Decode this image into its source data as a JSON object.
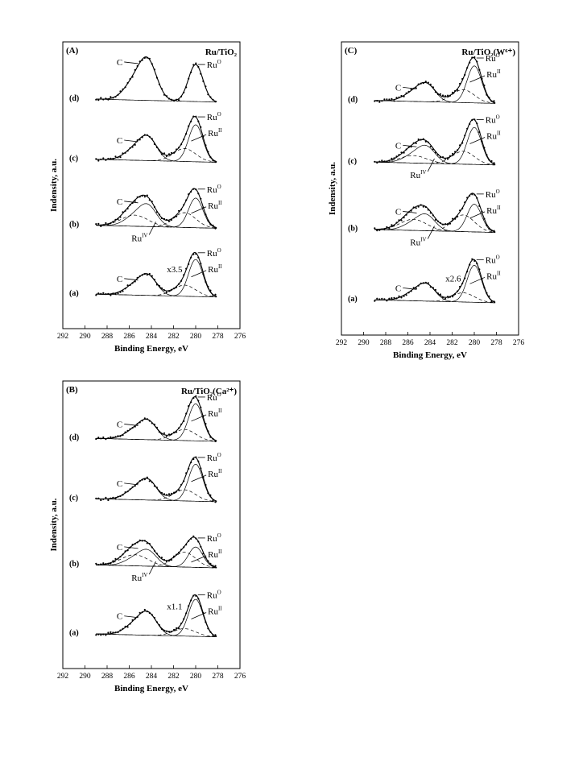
{
  "chart_data": [
    {
      "type": "line",
      "panel": "(A)",
      "title": "Ru/TiO₂",
      "xlabel": "Binding Energy, eV",
      "ylabel": "Indensity, a.u.",
      "xlim": [
        292,
        276
      ],
      "xticks": [
        292,
        290,
        288,
        286,
        284,
        282,
        280,
        278,
        276
      ],
      "traces": [
        {
          "label": "(d)",
          "ru0": 1.0,
          "ru2": 0.0,
          "ru4": 0.0,
          "c": 1.8,
          "annotations": [
            "C",
            "Ru⁰"
          ]
        },
        {
          "label": "(c)",
          "ru0": 1.0,
          "ru2": 0.35,
          "ru4": 0.0,
          "c": 1.05,
          "annotations": [
            "C",
            "Ru⁰",
            "Ruᴵᴵ"
          ]
        },
        {
          "label": "(b)",
          "ru0": 0.8,
          "ru2": 0.4,
          "ru4": 0.3,
          "c": 0.95,
          "annotations": [
            "C",
            "Ru⁰",
            "Ruᴵᴵ",
            "Ruᴵⱽ"
          ]
        },
        {
          "label": "(a)",
          "ru0": 1.0,
          "ru2": 0.3,
          "ru4": 0.0,
          "c": 0.9,
          "annotations": [
            "C",
            "Ru⁰",
            "Ruᴵᴵ",
            "x3.5"
          ]
        }
      ]
    },
    {
      "type": "line",
      "panel": "(B)",
      "title": "Ru/TiO₂(Ca²⁺)",
      "xlabel": "Binding Energy, eV",
      "ylabel": "Indensity, a.u.",
      "xlim": [
        292,
        276
      ],
      "xticks": [
        292,
        290,
        288,
        286,
        284,
        282,
        280,
        278,
        276
      ],
      "traces": [
        {
          "label": "(d)",
          "ru0": 1.0,
          "ru2": 0.3,
          "ru4": 0.0,
          "c": 0.85,
          "annotations": [
            "C",
            "Ru⁰",
            "Ruᴵᴵ"
          ]
        },
        {
          "label": "(c)",
          "ru0": 1.0,
          "ru2": 0.3,
          "ru4": 0.0,
          "c": 0.9,
          "annotations": [
            "C",
            "Ru⁰",
            "Ruᴵᴵ"
          ]
        },
        {
          "label": "(b)",
          "ru0": 0.55,
          "ru2": 0.4,
          "ru4": 0.3,
          "c": 0.7,
          "annotations": [
            "C",
            "Ru⁰",
            "Ruᴵᴵ",
            "Ruᴵⱽ"
          ]
        },
        {
          "label": "(a)",
          "ru0": 1.0,
          "ru2": 0.2,
          "ru4": 0.0,
          "c": 1.0,
          "annotations": [
            "C",
            "Ru⁰",
            "Ruᴵᴵ",
            "x1.1"
          ]
        }
      ]
    },
    {
      "type": "line",
      "panel": "(C)",
      "title": "Ru/TiO₂(W⁶⁺)",
      "xlabel": "Binding Energy, eV",
      "ylabel": "Indensity, a.u.",
      "xlim": [
        292,
        276
      ],
      "xticks": [
        292,
        290,
        288,
        286,
        284,
        282,
        280,
        278,
        276
      ],
      "traces": [
        {
          "label": "(d)",
          "ru0": 1.0,
          "ru2": 0.35,
          "ru4": 0.0,
          "c": 0.8,
          "annotations": [
            "C",
            "Ru⁰",
            "Ruᴵᴵ"
          ]
        },
        {
          "label": "(c)",
          "ru0": 1.0,
          "ru2": 0.35,
          "ru4": 0.2,
          "c": 0.75,
          "annotations": [
            "C",
            "Ru⁰",
            "Ruᴵᴵ",
            "Ruᴵⱽ"
          ]
        },
        {
          "label": "(b)",
          "ru0": 0.75,
          "ru2": 0.45,
          "ru4": 0.3,
          "c": 0.7,
          "annotations": [
            "C",
            "Ru⁰",
            "Ruᴵᴵ",
            "Ruᴵⱽ"
          ]
        },
        {
          "label": "(a)",
          "ru0": 1.0,
          "ru2": 0.25,
          "ru4": 0.0,
          "c": 0.75,
          "annotations": [
            "C",
            "Ru⁰",
            "Ruᴵᴵ",
            "x2.6"
          ]
        }
      ]
    }
  ]
}
